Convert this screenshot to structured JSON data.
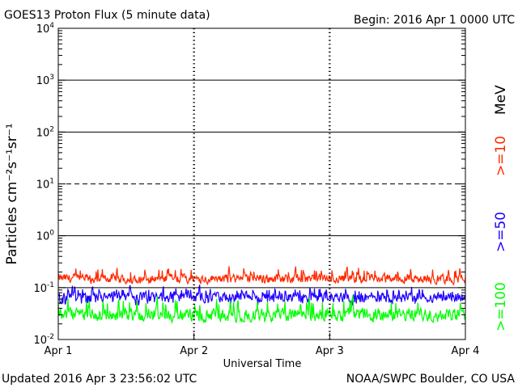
{
  "header": {
    "title": "GOES13 Proton Flux (5 minute data)",
    "begin": "Begin: 2016 Apr 1 0000 UTC"
  },
  "footer": {
    "updated": "Updated 2016 Apr  3 23:56:02 UTC",
    "source": "NOAA/SWPC Boulder, CO USA"
  },
  "chart_data": {
    "type": "line",
    "title": "GOES13 Proton Flux (5 minute data)",
    "xlabel": "Universal Time",
    "ylabel": "Particles cm⁻²s⁻¹sr⁻¹",
    "y_scale": "log",
    "ylim": [
      0.01,
      10000
    ],
    "xlim": [
      "2016-04-01T00:00Z",
      "2016-04-04T00:00Z"
    ],
    "x_tick_labels": [
      "Apr 1",
      "Apr 2",
      "Apr 3",
      "Apr 4"
    ],
    "y_tick_labels": [
      {
        "base": "10",
        "exp": "-2"
      },
      {
        "base": "10",
        "exp": "-1"
      },
      {
        "base": "10",
        "exp": "0"
      },
      {
        "base": "10",
        "exp": "1"
      },
      {
        "base": "10",
        "exp": "2"
      },
      {
        "base": "10",
        "exp": "3"
      },
      {
        "base": "10",
        "exp": "4"
      }
    ],
    "reference_lines": [
      {
        "y": 0.1,
        "style": "solid"
      },
      {
        "y": 1,
        "style": "solid"
      },
      {
        "y": 10,
        "style": "dashed"
      },
      {
        "y": 100,
        "style": "solid"
      },
      {
        "y": 1000,
        "style": "solid"
      }
    ],
    "energy_unit_label": "MeV",
    "series": [
      {
        "name": ">=10",
        "color": "#ff2a00",
        "approx_level": 0.15,
        "range": [
          0.11,
          0.3
        ]
      },
      {
        "name": ">=50",
        "color": "#1f00ff",
        "approx_level": 0.065,
        "range": [
          0.04,
          0.12
        ]
      },
      {
        "name": ">=100",
        "color": "#00ff00",
        "approx_level": 0.03,
        "range": [
          0.02,
          0.08
        ]
      }
    ]
  }
}
